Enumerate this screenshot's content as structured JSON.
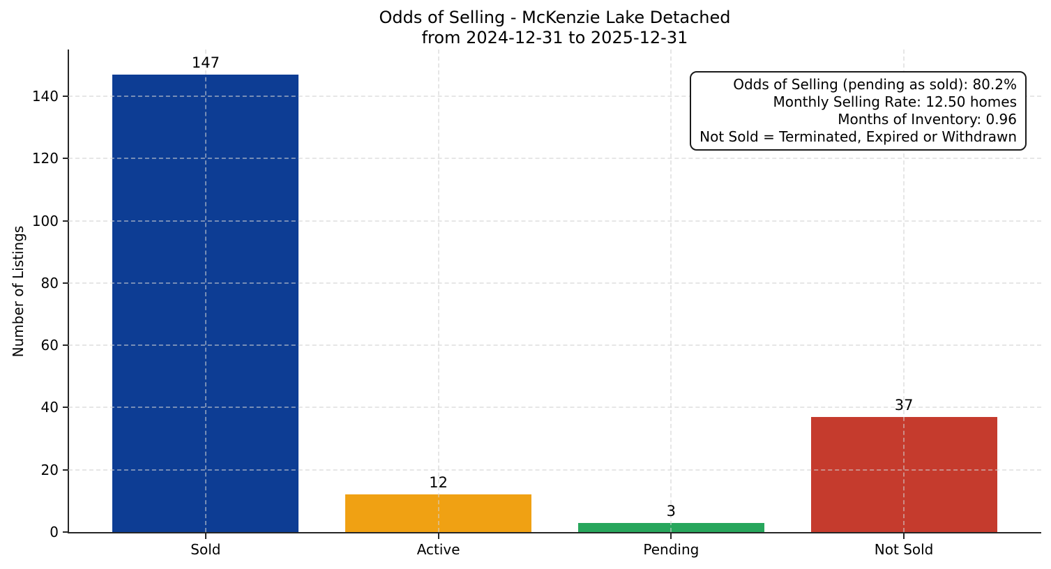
{
  "figure": {
    "title_line1": "Odds of Selling - McKenzie Lake Detached",
    "title_line2": "from 2024-12-31 to 2025-12-31",
    "ylabel": "Number of Listings"
  },
  "annotation_box": {
    "lines": [
      "Odds of Selling (pending as sold): 80.2%",
      "Monthly Selling Rate: 12.50 homes",
      "Months of Inventory: 0.96",
      "Not Sold = Terminated, Expired or Withdrawn"
    ]
  },
  "chart_data": {
    "type": "bar",
    "title": "Odds of Selling - McKenzie Lake Detached\nfrom 2024-12-31 to 2025-12-31",
    "categories": [
      "Sold",
      "Active",
      "Pending",
      "Not Sold"
    ],
    "values": [
      147,
      12,
      3,
      37
    ],
    "value_labels": [
      "147",
      "12",
      "3",
      "37"
    ],
    "bar_colors": [
      "#0d3d94",
      "#f0a113",
      "#27a65c",
      "#c53b2d"
    ],
    "xlabel": "",
    "ylabel": "Number of Listings",
    "ylim": [
      0,
      155
    ],
    "yticks": [
      0,
      20,
      40,
      60,
      80,
      100,
      120,
      140
    ],
    "grid": "both, dashed, light-gray, drawn over bars",
    "legend": "none",
    "annotations": [
      "Odds of Selling (pending as sold): 80.2%",
      "Monthly Selling Rate: 12.50 homes",
      "Months of Inventory: 0.96",
      "Not Sold = Terminated, Expired or Withdrawn"
    ],
    "colors": {
      "background": "#ffffff",
      "axis_spine": "#262626",
      "grid": "#d2d2d2",
      "text": "#000000"
    }
  }
}
